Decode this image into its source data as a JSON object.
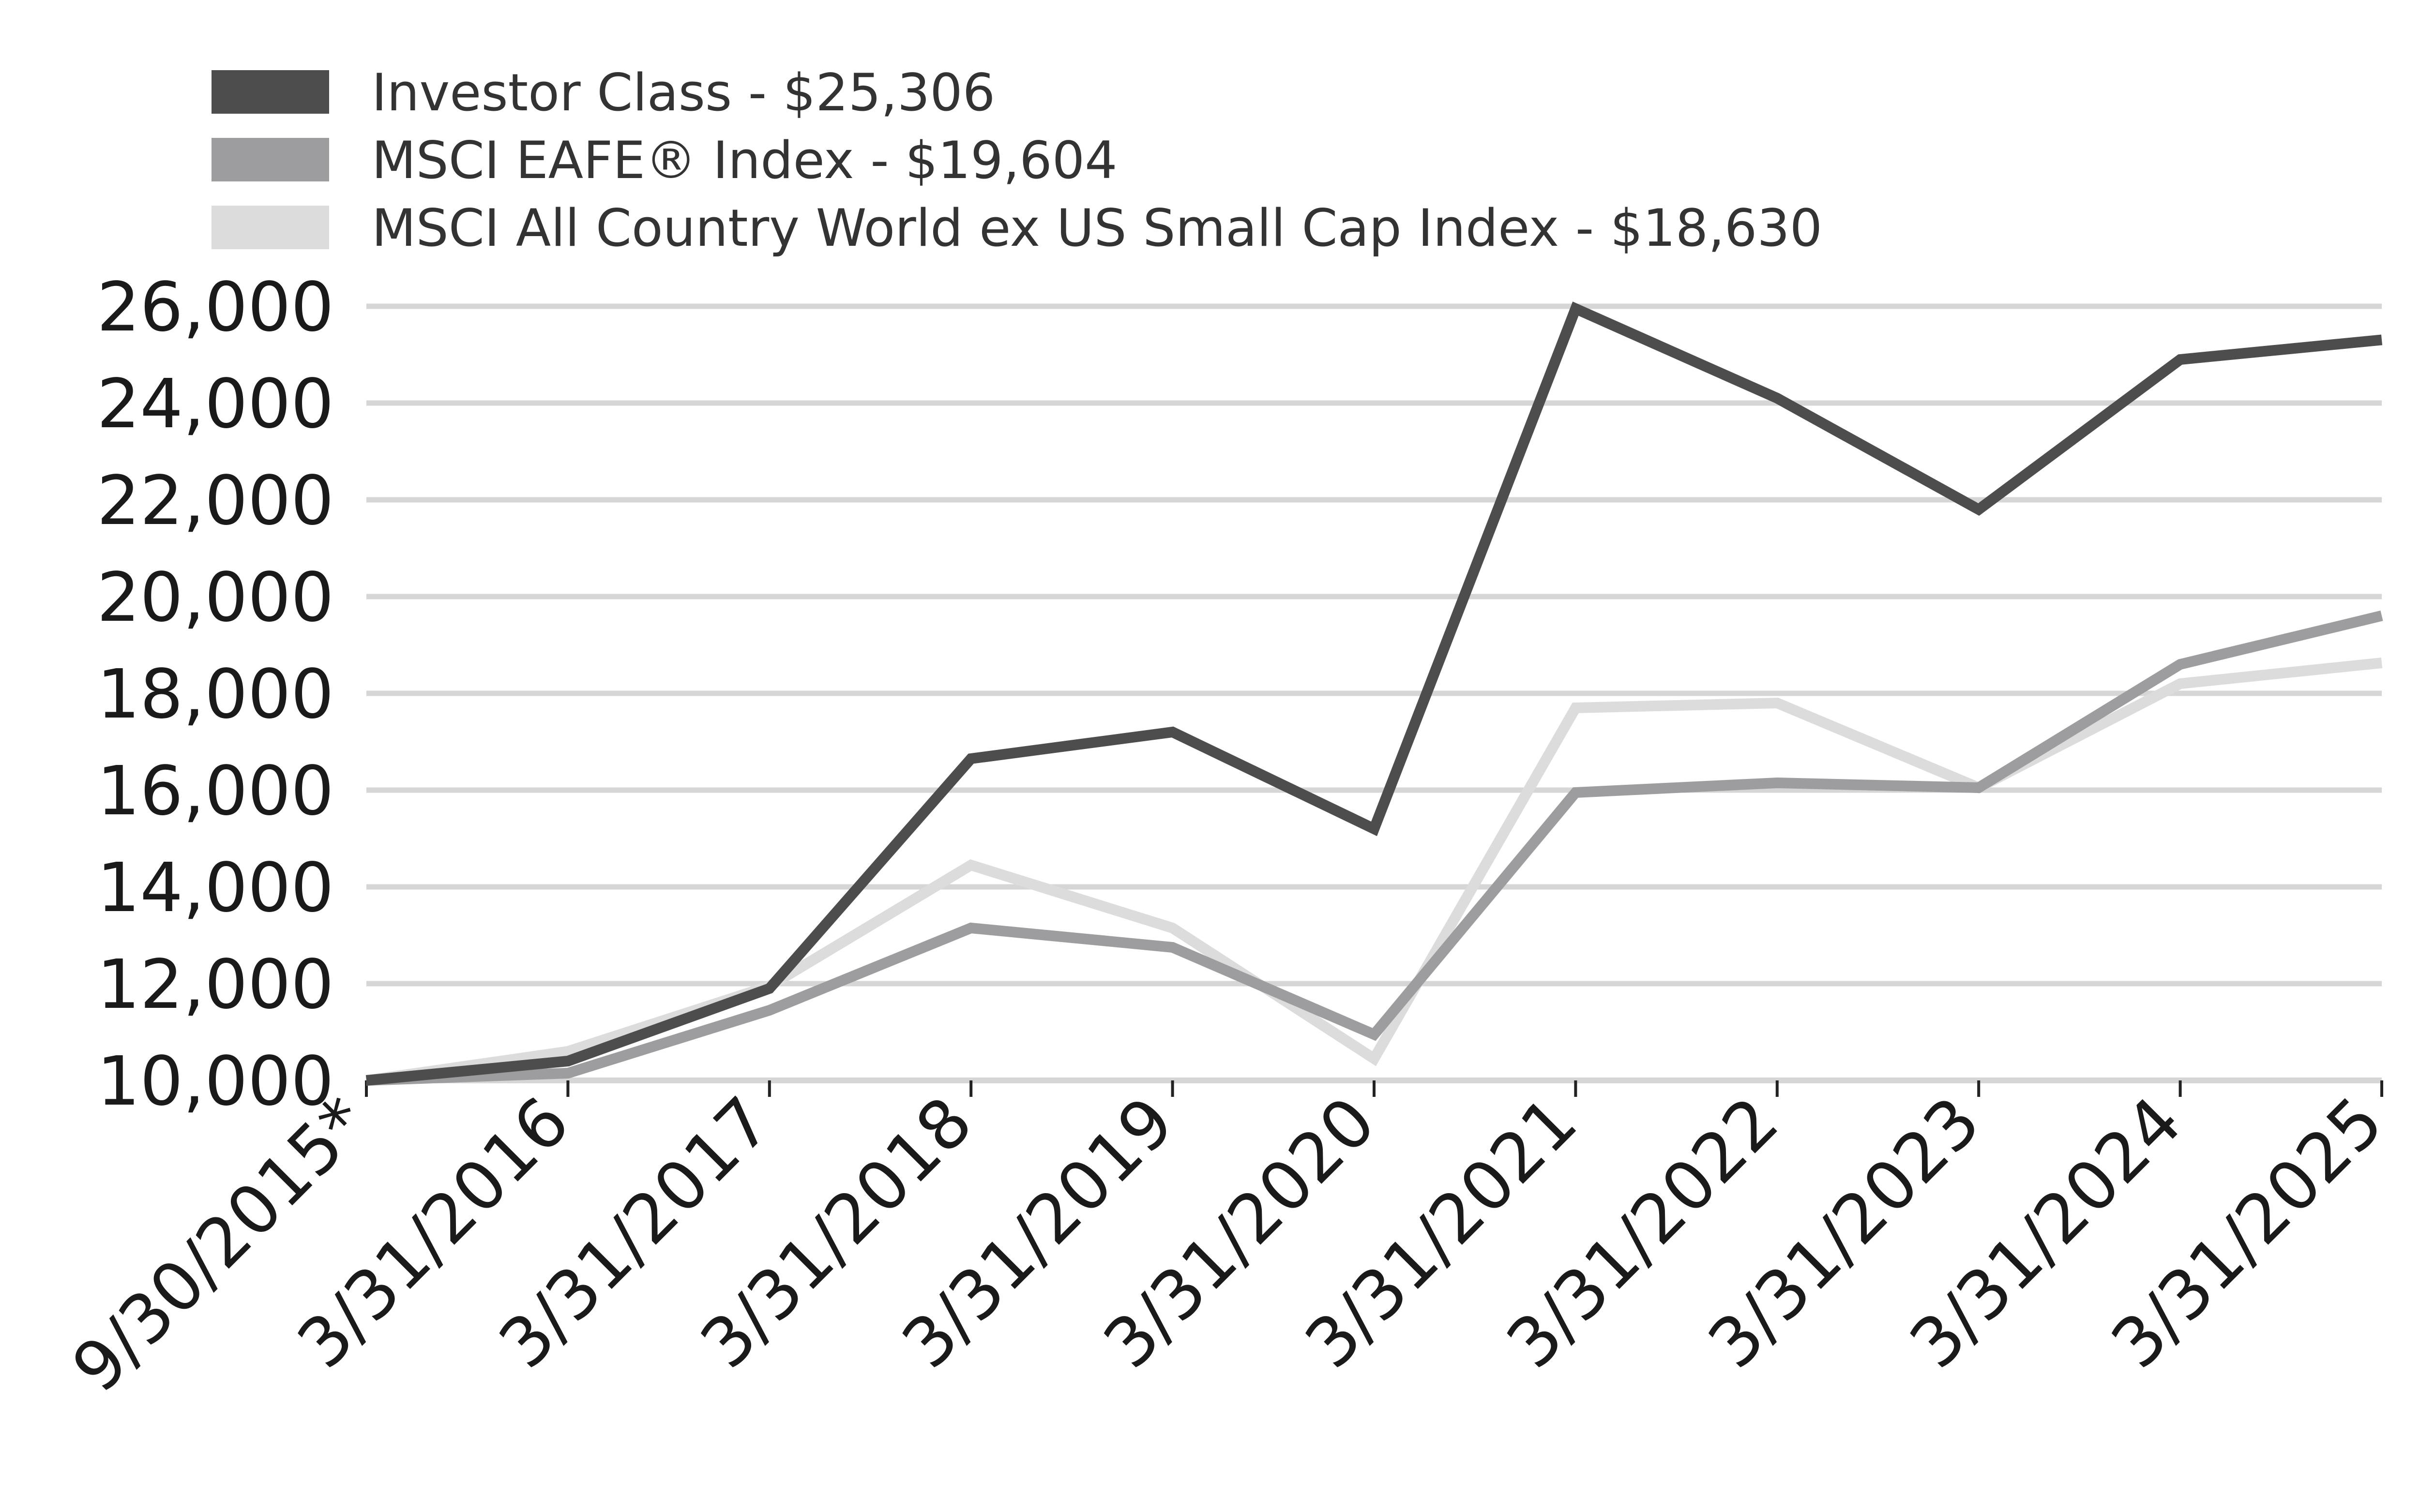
{
  "chart_data": {
    "type": "line",
    "title": "",
    "xlabel": "",
    "ylabel": "",
    "categories": [
      "9/30/2015*",
      "3/31/2016",
      "3/31/2017",
      "3/31/2018",
      "3/31/2019",
      "3/31/2020",
      "3/31/2021",
      "3/31/2022",
      "3/31/2023",
      "3/31/2024",
      "3/31/2025"
    ],
    "y_ticks": [
      "10,000",
      "12,000",
      "14,000",
      "16,000",
      "18,000",
      "20,000",
      "22,000",
      "24,000",
      "26,000"
    ],
    "ylim": [
      10000,
      26000
    ],
    "grid": true,
    "legend_position": "top-left",
    "series": [
      {
        "name": "Investor Class - $25,306",
        "color": "#4d4d4d",
        "values": [
          10000,
          10400,
          11900,
          16650,
          17200,
          15200,
          25950,
          24100,
          21800,
          24900,
          25306
        ]
      },
      {
        "name": "MSCI EAFE® Index - $19,604",
        "color": "#9d9da0",
        "values": [
          10000,
          10150,
          11450,
          13150,
          12750,
          10950,
          15950,
          16150,
          16050,
          18600,
          19604
        ]
      },
      {
        "name": "MSCI All Country World ex US Small Cap Index - $18,630",
        "color": "#dcdcdc",
        "values": [
          10000,
          10600,
          11950,
          14450,
          13150,
          10450,
          17700,
          17800,
          16050,
          18200,
          18630
        ]
      }
    ]
  }
}
